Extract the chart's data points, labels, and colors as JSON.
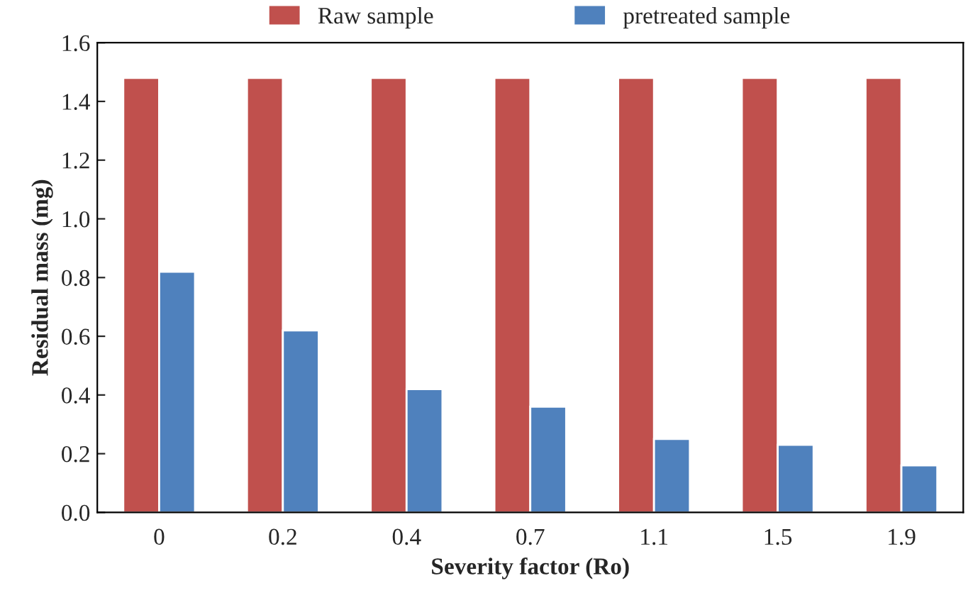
{
  "chart_data": {
    "type": "bar",
    "xlabel": "Severity factor (Ro)",
    "ylabel": "Residual mass (mg)",
    "categories": [
      "0",
      "0.2",
      "0.4",
      "0.7",
      "1.1",
      "1.5",
      "1.9"
    ],
    "series": [
      {
        "name": "Raw sample",
        "color": "#c0504d",
        "values": [
          1.48,
          1.48,
          1.48,
          1.48,
          1.48,
          1.48,
          1.48
        ]
      },
      {
        "name": "pretreated sample",
        "color": "#4f81bd",
        "values": [
          0.82,
          0.62,
          0.42,
          0.36,
          0.25,
          0.23,
          0.16
        ]
      }
    ],
    "ylim": [
      0,
      1.6
    ],
    "yticks": [
      {
        "value": 0,
        "label": "0.0"
      },
      0.2,
      0.4,
      0.6,
      0.8,
      {
        "value": 1,
        "label": "1.0"
      },
      1.2,
      1.4,
      1.6
    ],
    "legend": "top",
    "grid": false
  }
}
